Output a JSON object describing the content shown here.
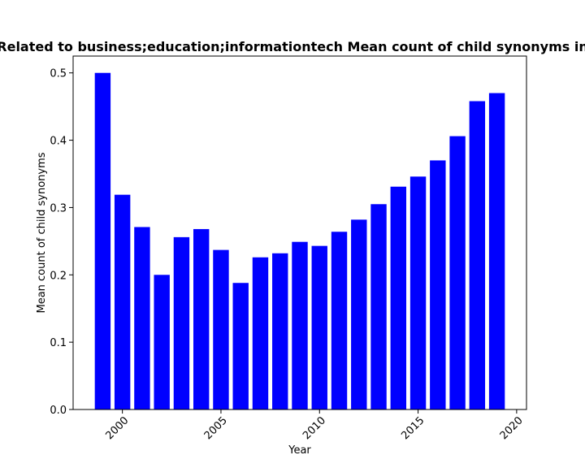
{
  "chart_data": {
    "type": "bar",
    "title": "Related to business;education;informationtech Mean count of child synonyms in",
    "xlabel": "Year",
    "ylabel": "Mean count of child synonyms",
    "x": [
      1999,
      2000,
      2001,
      2002,
      2003,
      2004,
      2005,
      2006,
      2007,
      2008,
      2009,
      2010,
      2011,
      2012,
      2013,
      2014,
      2015,
      2016,
      2017,
      2018,
      2019
    ],
    "values": [
      0.5,
      0.319,
      0.271,
      0.2,
      0.256,
      0.268,
      0.237,
      0.188,
      0.226,
      0.232,
      0.249,
      0.243,
      0.264,
      0.282,
      0.305,
      0.331,
      0.346,
      0.37,
      0.406,
      0.458,
      0.47
    ],
    "xlim": [
      1997.5,
      2020.5
    ],
    "ylim": [
      0,
      0.525
    ],
    "xticks": [
      2000,
      2005,
      2010,
      2015,
      2020
    ],
    "yticks": [
      0.0,
      0.1,
      0.2,
      0.3,
      0.4,
      0.5
    ],
    "bar_color": "#0000ff",
    "grid": false,
    "legend": "none"
  }
}
